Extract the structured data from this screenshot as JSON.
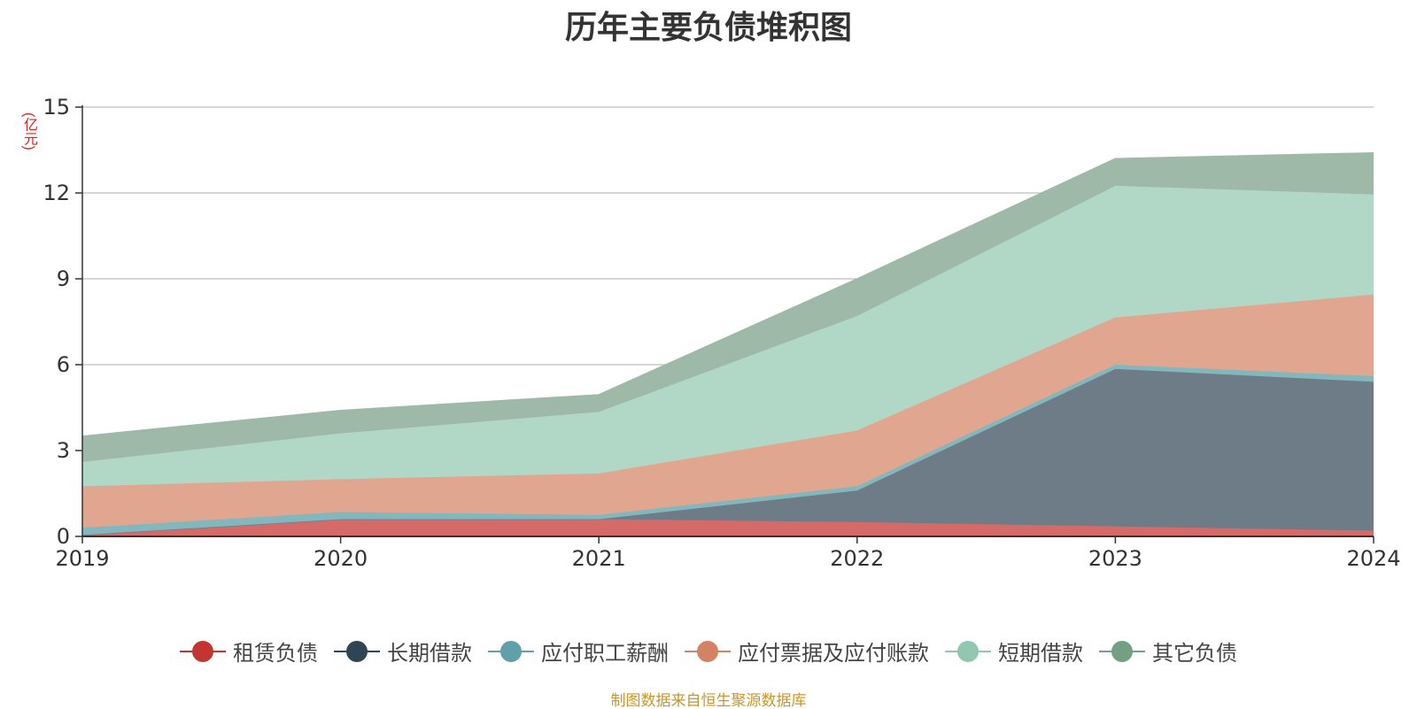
{
  "chart_data": {
    "type": "area",
    "stacked": true,
    "title": "历年主要负债堆积图",
    "ylabel": "(亿元)",
    "xlabel": "",
    "categories": [
      "2019",
      "2020",
      "2021",
      "2022",
      "2023",
      "2024"
    ],
    "ylim": [
      0,
      15
    ],
    "yticks": [
      0,
      3,
      6,
      9,
      12,
      15
    ],
    "grid": true,
    "legend_position": "bottom",
    "series": [
      {
        "name": "租赁负债",
        "color": "#c23531",
        "fill": "#d56b69",
        "values": [
          0.05,
          0.6,
          0.6,
          0.5,
          0.35,
          0.2
        ]
      },
      {
        "name": "长期借款",
        "color": "#2f4554",
        "fill": "#6e7c88",
        "values": [
          0.0,
          0.0,
          0.0,
          1.1,
          5.5,
          5.2
        ]
      },
      {
        "name": "应付职工薪酬",
        "color": "#61a0a8",
        "fill": "#82b7be",
        "values": [
          0.25,
          0.25,
          0.15,
          0.15,
          0.15,
          0.2
        ]
      },
      {
        "name": "应付票据及应付账款",
        "color": "#d48265",
        "fill": "#e0a690",
        "values": [
          1.45,
          1.15,
          1.45,
          1.95,
          1.65,
          2.85
        ]
      },
      {
        "name": "短期借款",
        "color": "#91c7ae",
        "fill": "#b1d8c6",
        "values": [
          0.85,
          1.6,
          2.15,
          4.0,
          4.6,
          3.5
        ]
      },
      {
        "name": "其它负债",
        "color": "#749f83",
        "fill": "#9eb9a7",
        "values": [
          0.9,
          0.8,
          0.6,
          1.3,
          0.95,
          1.45
        ]
      }
    ]
  },
  "source_note": "制图数据来自恒生聚源数据库"
}
